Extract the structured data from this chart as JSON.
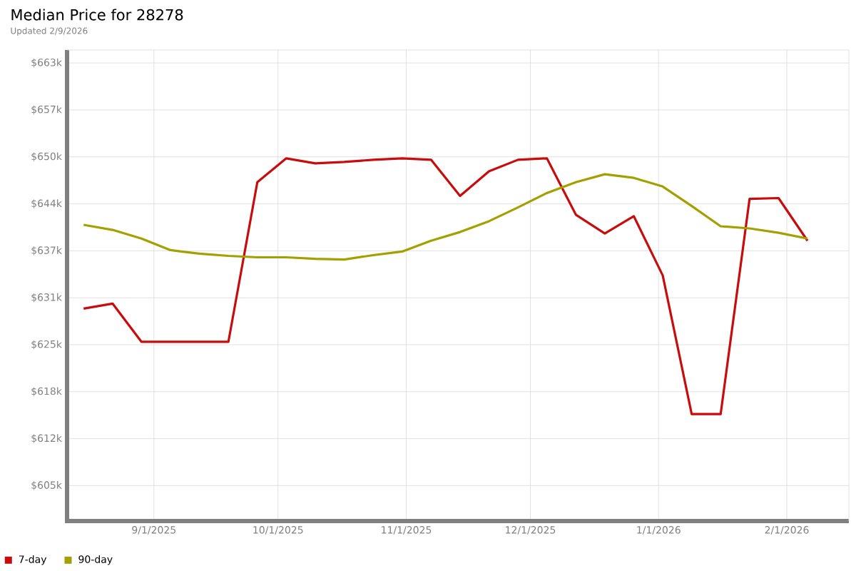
{
  "chart_data": {
    "type": "line",
    "title": "Median Price for 28278",
    "subtitle": "Updated 2/9/2026",
    "x": [
      "2025-08-15",
      "2025-08-22",
      "2025-08-29",
      "2025-09-05",
      "2025-09-12",
      "2025-09-19",
      "2025-09-26",
      "2025-10-03",
      "2025-10-10",
      "2025-10-17",
      "2025-10-24",
      "2025-10-31",
      "2025-11-07",
      "2025-11-14",
      "2025-11-21",
      "2025-11-28",
      "2025-12-05",
      "2025-12-12",
      "2025-12-19",
      "2025-12-26",
      "2026-01-02",
      "2026-01-09",
      "2026-01-16",
      "2026-01-23",
      "2026-01-30",
      "2026-02-06"
    ],
    "series": [
      {
        "name": "7-day",
        "color": "#c80c0c",
        "values": [
          629.5,
          630.2,
          624.9,
          624.9,
          624.9,
          624.9,
          647.0,
          650.3,
          649.6,
          649.8,
          650.1,
          650.3,
          650.1,
          645.1,
          648.5,
          650.1,
          650.3,
          642.5,
          639.9,
          642.3,
          634.1,
          614.9,
          614.9,
          644.7,
          644.8,
          638.9
        ]
      },
      {
        "name": "90-day",
        "color": "#a3a000",
        "values": [
          641.1,
          640.4,
          639.2,
          637.6,
          637.1,
          636.8,
          636.6,
          636.6,
          636.4,
          636.3,
          636.9,
          637.4,
          638.9,
          640.1,
          641.6,
          643.5,
          645.5,
          647.0,
          648.1,
          647.6,
          646.4,
          643.7,
          640.9,
          640.6,
          640.0,
          639.2
        ]
      }
    ],
    "xlim": [
      "2025-08-11",
      "2026-02-16"
    ],
    "xticks": [
      {
        "value": "2025-09-01",
        "label": "9/1/2025"
      },
      {
        "value": "2025-10-01",
        "label": "10/1/2025"
      },
      {
        "value": "2025-11-01",
        "label": "11/1/2025"
      },
      {
        "value": "2025-12-01",
        "label": "12/1/2025"
      },
      {
        "value": "2026-01-01",
        "label": "1/1/2026"
      },
      {
        "value": "2026-02-01",
        "label": "2/1/2026"
      }
    ],
    "ylim": [
      600.1,
      665.3
    ],
    "yticks": [
      {
        "value": 605,
        "label": "$605k"
      },
      {
        "value": 611.5,
        "label": "$612k"
      },
      {
        "value": 618,
        "label": "$618k"
      },
      {
        "value": 624.5,
        "label": "$625k"
      },
      {
        "value": 631,
        "label": "$631k"
      },
      {
        "value": 637.5,
        "label": "$637k"
      },
      {
        "value": 644,
        "label": "$644k"
      },
      {
        "value": 650.5,
        "label": "$650k"
      },
      {
        "value": 657,
        "label": "$657k"
      },
      {
        "value": 663.5,
        "label": "$663k"
      }
    ],
    "grid": true,
    "legend": "bottom left",
    "marker": "none",
    "line_style": "solid"
  }
}
